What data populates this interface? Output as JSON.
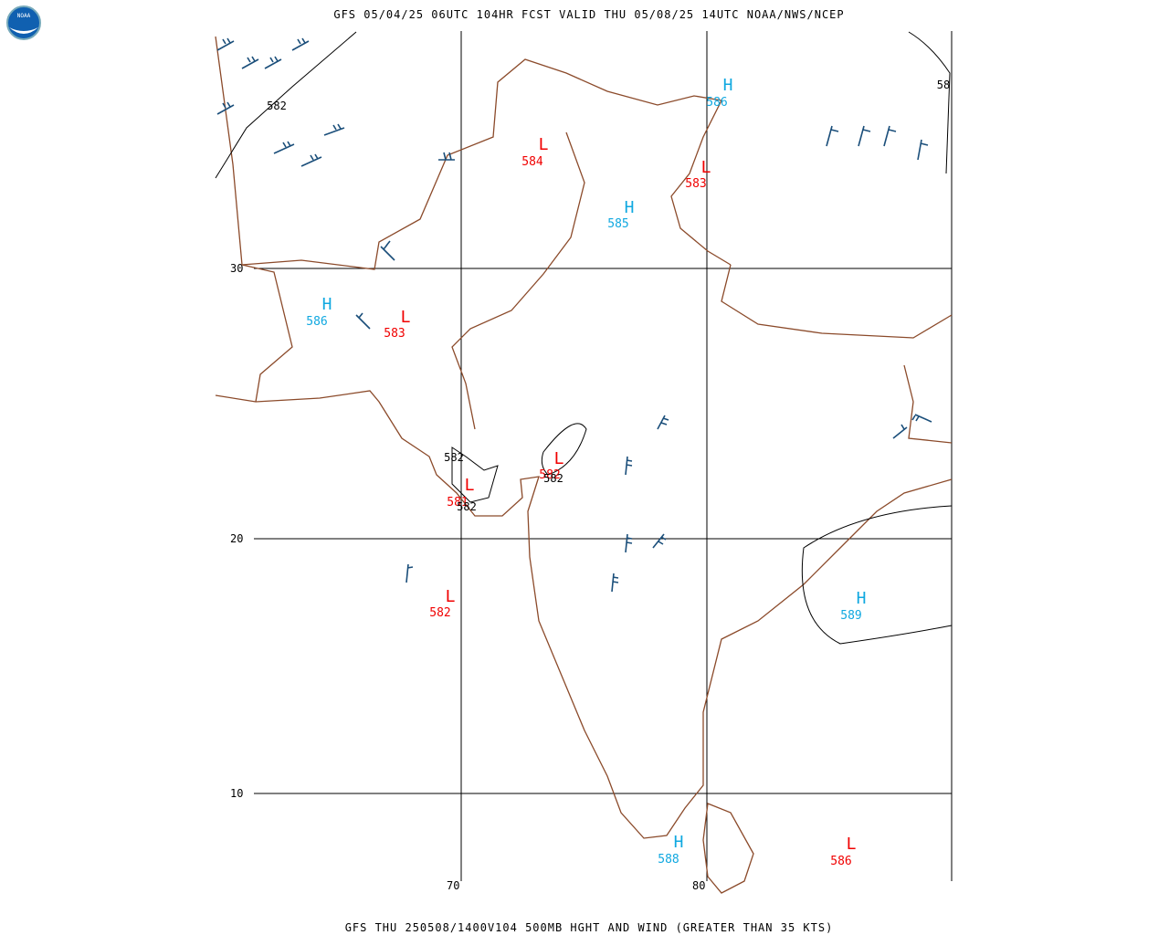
{
  "logo": "NOAA",
  "header": "GFS 05/04/25 06UTC 104HR FCST VALID THU 05/08/25 14UTC NOAA/NWS/NCEP",
  "footer": "GFS THU 250508/1400V104 500MB HGHT AND WIND (GREATER THAN 35 KTS)",
  "grid_labels": {
    "latitudes": [
      "30",
      "20",
      "10"
    ],
    "longitudes": [
      "70",
      "80"
    ]
  },
  "centers": [
    {
      "kind": "H",
      "value": "586"
    },
    {
      "kind": "L",
      "value": "584"
    },
    {
      "kind": "L",
      "value": "583"
    },
    {
      "kind": "H",
      "value": "585"
    },
    {
      "kind": "H",
      "value": "586"
    },
    {
      "kind": "L",
      "value": "583"
    },
    {
      "kind": "L",
      "value": "582"
    },
    {
      "kind": "L",
      "value": "581"
    },
    {
      "kind": "L",
      "value": "582"
    },
    {
      "kind": "H",
      "value": "589"
    },
    {
      "kind": "H",
      "value": "588"
    },
    {
      "kind": "L",
      "value": "586"
    }
  ],
  "contour_labels": [
    "582",
    "582",
    "582",
    "582",
    "58"
  ]
}
